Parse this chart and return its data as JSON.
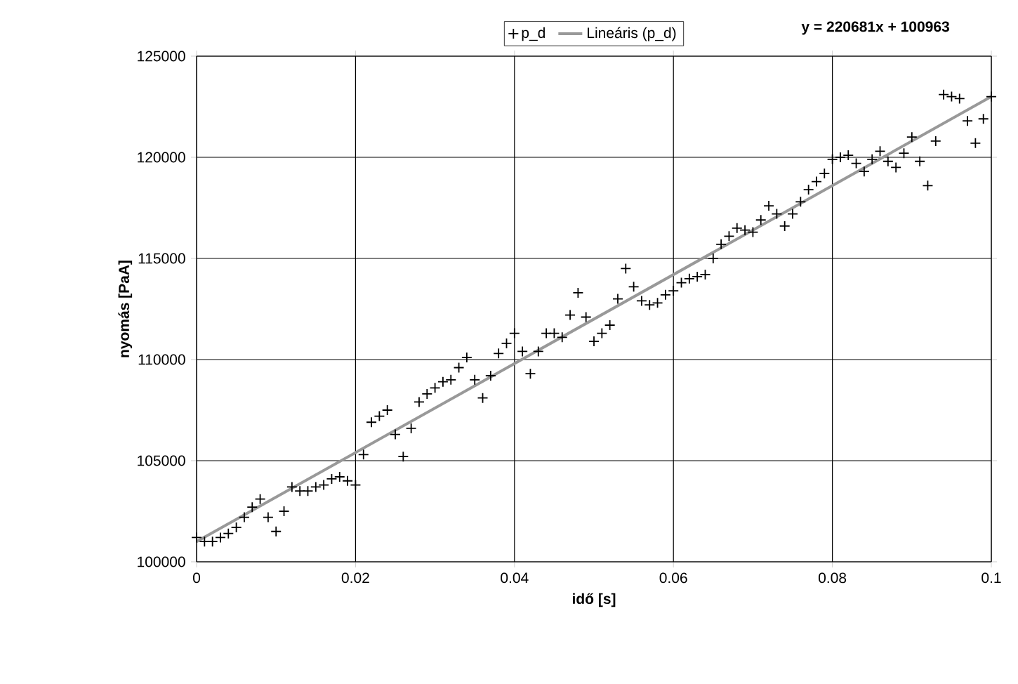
{
  "chart_data": {
    "type": "scatter",
    "xlabel": "idő [s]",
    "ylabel": "nyomás [PaA]",
    "x": [
      0,
      0.001,
      0.002,
      0.003,
      0.004,
      0.005,
      0.006,
      0.007,
      0.008,
      0.009,
      0.01,
      0.011,
      0.012,
      0.013,
      0.014,
      0.015,
      0.016,
      0.017,
      0.018,
      0.019,
      0.02,
      0.021,
      0.022,
      0.023,
      0.024,
      0.025,
      0.026,
      0.027,
      0.028,
      0.029,
      0.03,
      0.031,
      0.032,
      0.033,
      0.034,
      0.035,
      0.036,
      0.037,
      0.038,
      0.039,
      0.04,
      0.041,
      0.042,
      0.043,
      0.044,
      0.045,
      0.046,
      0.047,
      0.048,
      0.049,
      0.05,
      0.051,
      0.052,
      0.053,
      0.054,
      0.055,
      0.056,
      0.057,
      0.058,
      0.059,
      0.06,
      0.061,
      0.062,
      0.063,
      0.064,
      0.065,
      0.066,
      0.067,
      0.068,
      0.069,
      0.07,
      0.071,
      0.072,
      0.073,
      0.074,
      0.075,
      0.076,
      0.077,
      0.078,
      0.079,
      0.08,
      0.081,
      0.082,
      0.083,
      0.084,
      0.085,
      0.086,
      0.087,
      0.088,
      0.089,
      0.09,
      0.091,
      0.092,
      0.093,
      0.094,
      0.095,
      0.096,
      0.097,
      0.098,
      0.099,
      0.1
    ],
    "series": [
      {
        "name": "p_d",
        "color": "#000000",
        "marker": "cross",
        "values": [
          101200,
          101000,
          101000,
          101200,
          101400,
          101700,
          102200,
          102700,
          103100,
          102200,
          101500,
          102500,
          103700,
          103500,
          103500,
          103700,
          103800,
          104100,
          104200,
          104000,
          103800,
          105300,
          106900,
          107200,
          107500,
          106300,
          105200,
          106600,
          107900,
          108300,
          108600,
          108900,
          109000,
          109600,
          110100,
          109000,
          108100,
          109200,
          110300,
          110800,
          111300,
          110400,
          109300,
          110400,
          111300,
          111300,
          111100,
          112200,
          113300,
          112100,
          110900,
          111300,
          111700,
          113000,
          114500,
          113600,
          112900,
          112700,
          112800,
          113200,
          113400,
          113800,
          114000,
          114100,
          114200,
          115000,
          115700,
          116100,
          116500,
          116400,
          116300,
          116900,
          117600,
          117200,
          116600,
          117200,
          117800,
          118400,
          118800,
          119200,
          119900,
          120000,
          120100,
          119700,
          119300,
          119900,
          120300,
          119800,
          119500,
          120200,
          121000,
          119800,
          118600,
          120800,
          123100,
          123000,
          122900,
          121800,
          120700,
          121900,
          123000
        ]
      },
      {
        "name": "Lineáris (p_d)",
        "type": "line",
        "color": "#999999",
        "marker": "none",
        "line_style": "solid",
        "x": [
          0,
          0.1
        ],
        "values": [
          101000,
          123000
        ]
      }
    ],
    "xlim": [
      0,
      0.1
    ],
    "xticks": [
      0,
      0.02,
      0.04,
      0.06,
      0.08,
      0.1
    ],
    "ylim": [
      100000,
      125000
    ],
    "yticks": [
      100000,
      105000,
      110000,
      115000,
      120000,
      125000
    ],
    "grid": true,
    "legend": "top",
    "annotations": [
      "y = 220681x + 100963"
    ]
  }
}
